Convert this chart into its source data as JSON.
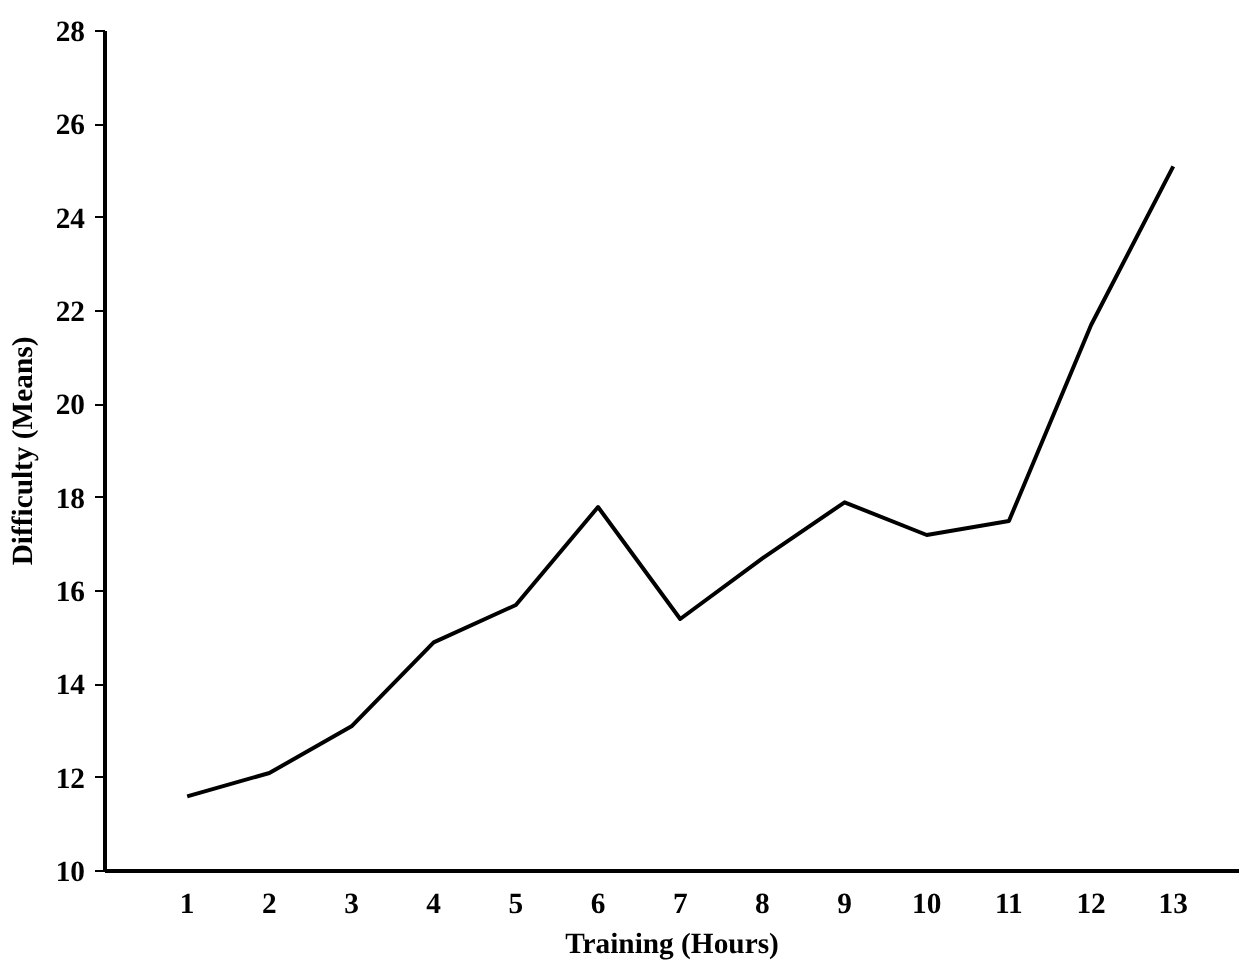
{
  "chart_data": {
    "type": "line",
    "xlabel": "Training (Hours)",
    "ylabel": "Difficulty (Means)",
    "x": [
      1,
      2,
      3,
      4,
      5,
      6,
      7,
      8,
      9,
      10,
      11,
      12,
      13
    ],
    "xlim": [
      0,
      13.8
    ],
    "xticks": [
      1,
      2,
      3,
      4,
      5,
      6,
      7,
      8,
      9,
      10,
      11,
      12,
      13
    ],
    "series": [
      {
        "color": "#000000",
        "values": [
          11.6,
          12.1,
          13.1,
          14.9,
          15.7,
          17.8,
          15.4,
          16.7,
          17.9,
          17.2,
          17.5,
          21.7,
          25.1
        ]
      }
    ],
    "ylim": [
      10,
      28
    ],
    "yticks": [
      10,
      12,
      14,
      16,
      18,
      20,
      22,
      24,
      26,
      28
    ],
    "grid": false,
    "marker": "none",
    "line_style": "solid"
  }
}
